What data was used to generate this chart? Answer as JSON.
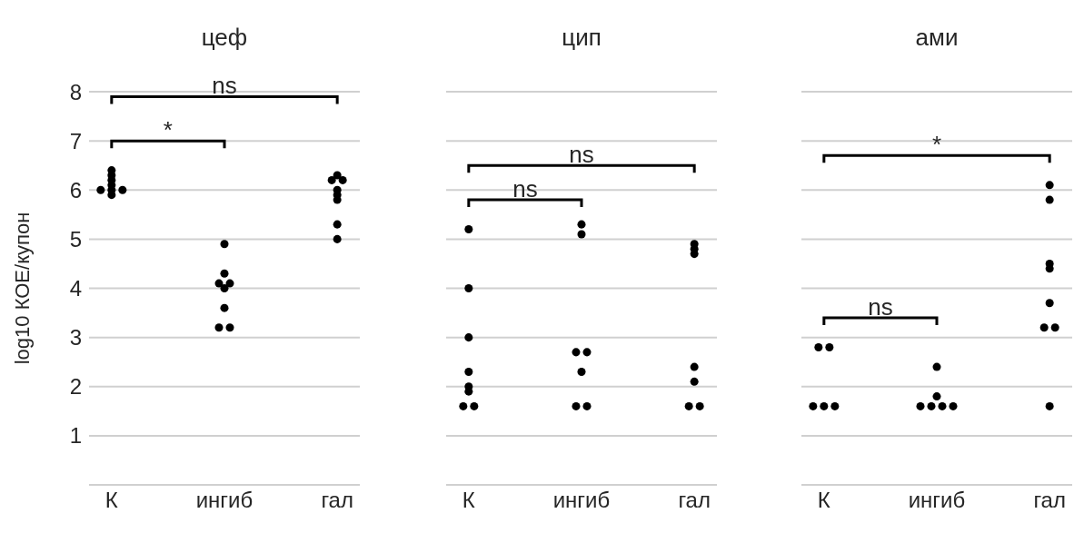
{
  "chart_data": [
    {
      "type": "scatter",
      "title": "цеф",
      "ylabel": "log10 КОЕ/купон",
      "categories": [
        "К",
        "ингиб",
        "гал"
      ],
      "ylim": [
        0,
        8
      ],
      "yticks": [
        1,
        2,
        3,
        4,
        5,
        6,
        7,
        8
      ],
      "grid": "y",
      "marker": "circle",
      "annotations": [
        "ns",
        "*"
      ],
      "series": [
        {
          "color": "#000000",
          "x": [
            "К",
            "К",
            "К",
            "К",
            "К",
            "К",
            "К",
            "К",
            "ингиб",
            "ингиб",
            "ингиб",
            "ингиб",
            "ингиб",
            "ингиб",
            "ингиб",
            "ингиб",
            "гал",
            "гал",
            "гал",
            "гал",
            "гал",
            "гал",
            "гал",
            "гал"
          ],
          "values": [
            6.4,
            6.3,
            6.2,
            6.1,
            6.0,
            6.0,
            5.9,
            6.0,
            4.9,
            4.3,
            4.1,
            4.1,
            4.0,
            3.6,
            3.2,
            3.2,
            6.3,
            6.2,
            6.2,
            6.0,
            5.9,
            5.8,
            5.3,
            5.0
          ]
        }
      ]
    },
    {
      "type": "scatter",
      "title": "цип",
      "categories": [
        "К",
        "ингиб",
        "гал"
      ],
      "ylim": [
        0,
        8
      ],
      "yticks": [
        1,
        2,
        3,
        4,
        5,
        6,
        7,
        8
      ],
      "tick_labels": "x",
      "grid": "y",
      "marker": "circle",
      "annotations": [
        "ns",
        "ns"
      ],
      "series": [
        {
          "color": "#000000",
          "x": [
            "К",
            "К",
            "К",
            "К",
            "К",
            "К",
            "К",
            "К",
            "ингиб",
            "ингиб",
            "ингиб",
            "ингиб",
            "ингиб",
            "ингиб",
            "ингиб",
            "гал",
            "гал",
            "гал",
            "гал",
            "гал",
            "гал",
            "гал"
          ],
          "values": [
            5.2,
            4.0,
            3.0,
            2.3,
            2.0,
            1.9,
            1.6,
            1.6,
            5.3,
            5.1,
            2.7,
            2.7,
            2.3,
            1.6,
            1.6,
            4.9,
            4.8,
            4.7,
            2.4,
            2.1,
            1.6,
            1.6
          ]
        }
      ]
    },
    {
      "type": "scatter",
      "title": "ами",
      "categories": [
        "К",
        "ингиб",
        "гал"
      ],
      "ylim": [
        0,
        8
      ],
      "yticks": [
        1,
        2,
        3,
        4,
        5,
        6,
        7,
        8
      ],
      "tick_labels": "x",
      "grid": "y",
      "marker": "circle",
      "annotations": [
        "*",
        "ns"
      ],
      "series": [
        {
          "color": "#000000",
          "x": [
            "К",
            "К",
            "К",
            "К",
            "К",
            "ингиб",
            "ингиб",
            "ингиб",
            "ингиб",
            "ингиб",
            "ингиб",
            "гал",
            "гал",
            "гал",
            "гал",
            "гал",
            "гал",
            "гал",
            "гал"
          ],
          "values": [
            2.8,
            2.8,
            1.6,
            1.6,
            1.6,
            2.4,
            1.8,
            1.6,
            1.6,
            1.6,
            1.6,
            6.1,
            5.8,
            4.5,
            4.4,
            3.7,
            3.2,
            3.2,
            1.6
          ]
        }
      ]
    }
  ]
}
